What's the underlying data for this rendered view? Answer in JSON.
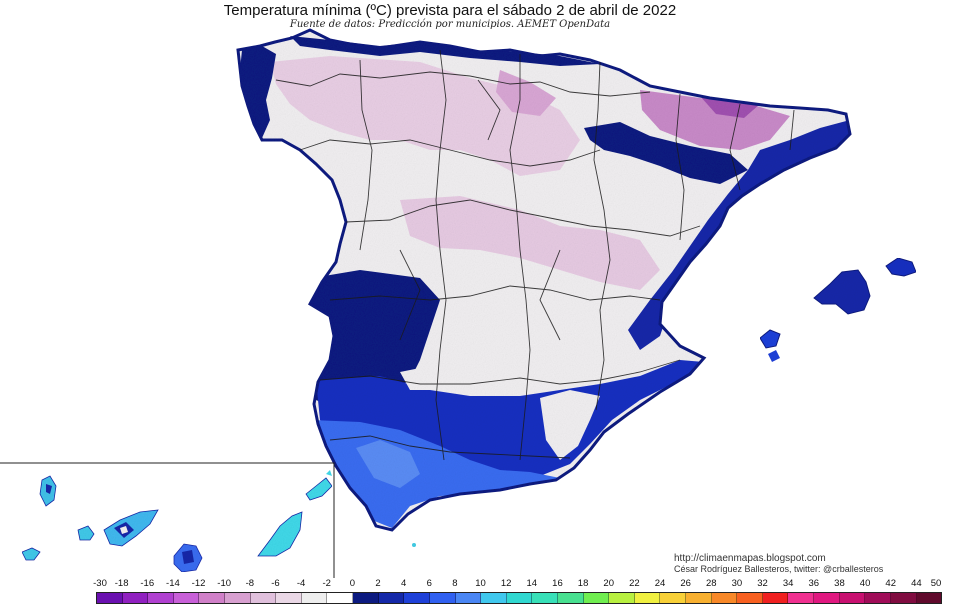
{
  "header": {
    "title": "Temperatura mínima (ºC) prevista para el sábado 2 de abril de 2022",
    "subtitle": "Fuente de datos: Predicción por municipios. AEMET OpenData"
  },
  "credits": {
    "url": "http://climaenmapas.blogspot.com",
    "author": "César Rodríguez Ballesteros, twitter: @crballesteros"
  },
  "legend": {
    "ticks": [
      "-30",
      "-18",
      "-16",
      "-14",
      "-12",
      "-10",
      "-8",
      "-6",
      "-4",
      "-2",
      "0",
      "2",
      "4",
      "6",
      "8",
      "10",
      "12",
      "14",
      "16",
      "18",
      "20",
      "22",
      "24",
      "26",
      "28",
      "30",
      "32",
      "34",
      "36",
      "38",
      "40",
      "42",
      "44",
      "50"
    ],
    "colors": [
      "#6a10b0",
      "#9020c0",
      "#b040d0",
      "#c860d8",
      "#d080c8",
      "#d8a0d0",
      "#e0c0dc",
      "#ead8e6",
      "#eeeeee",
      "#ffffff",
      "#0c1a80",
      "#1428a8",
      "#1e40d8",
      "#3060f0",
      "#4a86f4",
      "#40c8ee",
      "#30d8d0",
      "#38e0b8",
      "#48e090",
      "#70ee50",
      "#b8f040",
      "#f0f040",
      "#f8d038",
      "#f8b030",
      "#f88828",
      "#f86020",
      "#f02020",
      "#f03090",
      "#e01880",
      "#c81070",
      "#a00c58",
      "#800c40",
      "#600a2c"
    ]
  },
  "map_colors": {
    "cold_lilac": "#e4c8e0",
    "near_zero": "#f2f0f2",
    "deep_blue": "#0c1a80",
    "mid_blue": "#1e40d8",
    "light_blue": "#3a6cf0",
    "cyan": "#40e0e0",
    "violet": "#a050b0"
  }
}
